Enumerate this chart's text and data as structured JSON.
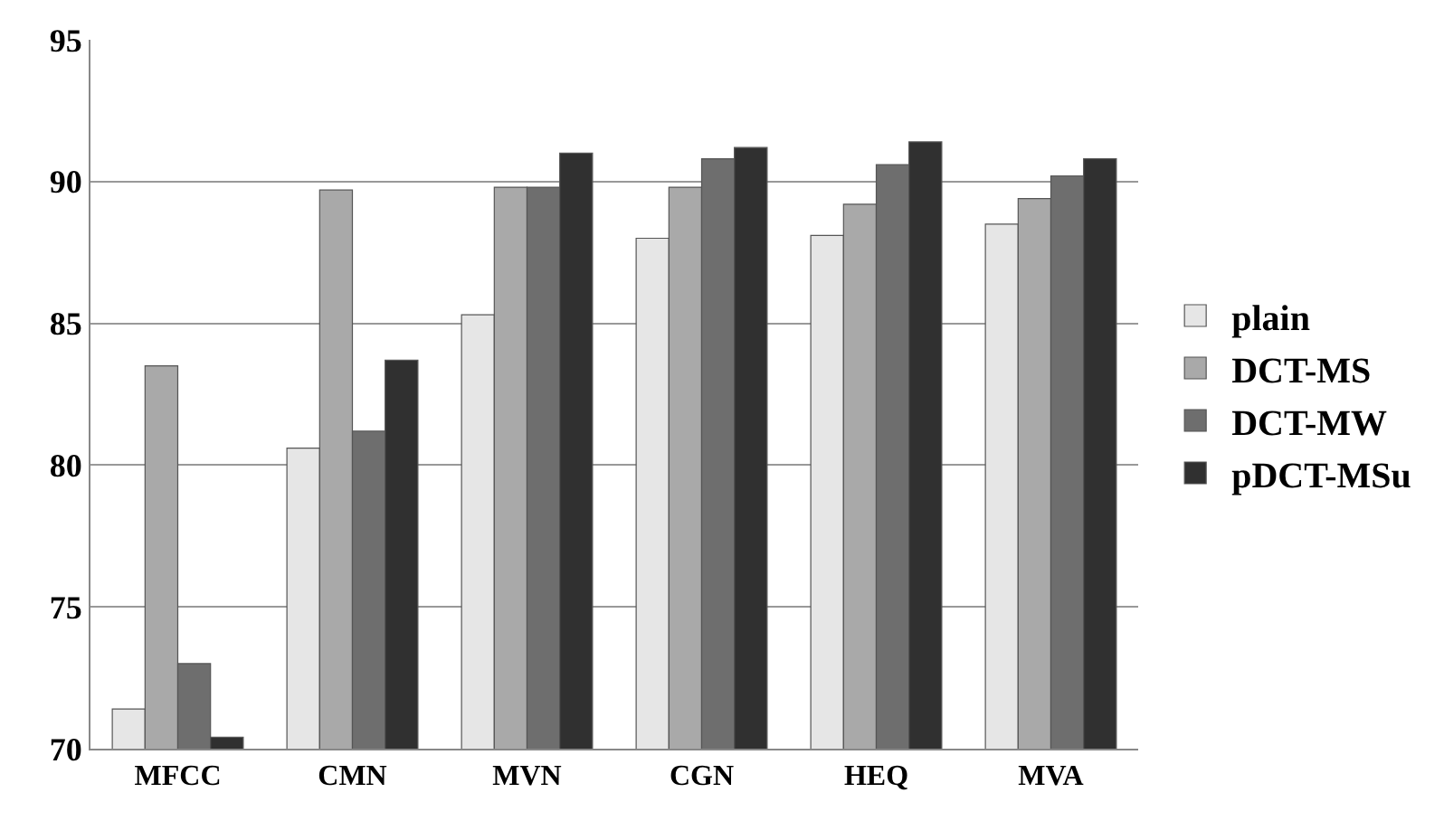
{
  "chart_data": {
    "type": "bar",
    "categories": [
      "MFCC",
      "CMN",
      "MVN",
      "CGN",
      "HEQ",
      "MVA"
    ],
    "series": [
      {
        "name": "plain",
        "color": "#e6e6e6",
        "values": [
          71.4,
          80.6,
          85.3,
          88.0,
          88.1,
          88.5
        ]
      },
      {
        "name": "DCT-MS",
        "color": "#a9a9a9",
        "values": [
          83.5,
          89.7,
          89.8,
          89.8,
          89.2,
          89.4
        ]
      },
      {
        "name": "DCT-MW",
        "color": "#6e6e6e",
        "values": [
          73.0,
          81.2,
          89.8,
          90.8,
          90.6,
          90.2
        ]
      },
      {
        "name": "pDCT-MSu",
        "color": "#303030",
        "values": [
          70.4,
          83.7,
          91.0,
          91.2,
          91.4,
          90.8
        ]
      }
    ],
    "ylim": [
      70,
      95
    ],
    "yticks": [
      70,
      75,
      80,
      85,
      90,
      95
    ],
    "grid": "y",
    "legend": "right"
  }
}
